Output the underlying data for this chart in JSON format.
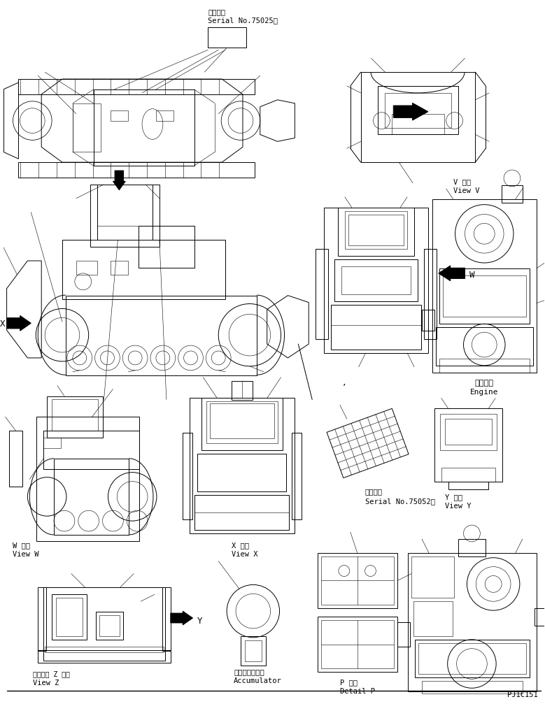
{
  "bg_color": "#ffffff",
  "fig_width": 7.79,
  "fig_height": 10.07,
  "dpi": 100,
  "label_top_jp": "適用号機",
  "label_top_serial": "Serial No.75025～",
  "label_vview_jp": "V 　視",
  "label_vview_en": "View V",
  "label_engine_jp": "エンジン",
  "label_engine_en": "Engine",
  "label_wview_jp": "W 　視",
  "label_wview_en": "View W",
  "label_xview_jp": "X 　視",
  "label_xview_en": "View X",
  "label_yview_jp": "Y 　視",
  "label_yview_en": "View Y",
  "label_serial2_jp": "適用号機",
  "label_serial2_en": "Serial No.75052～",
  "label_zview_dash": "－・－－ Z 　視",
  "label_zview_en": "View Z",
  "label_accum_jp": "アキュムレータ",
  "label_accum_en": "Accumulator",
  "label_detailp_jp": "P 詳細",
  "label_detailp_en": "Detail P",
  "label_pjid": "PJ1C151"
}
